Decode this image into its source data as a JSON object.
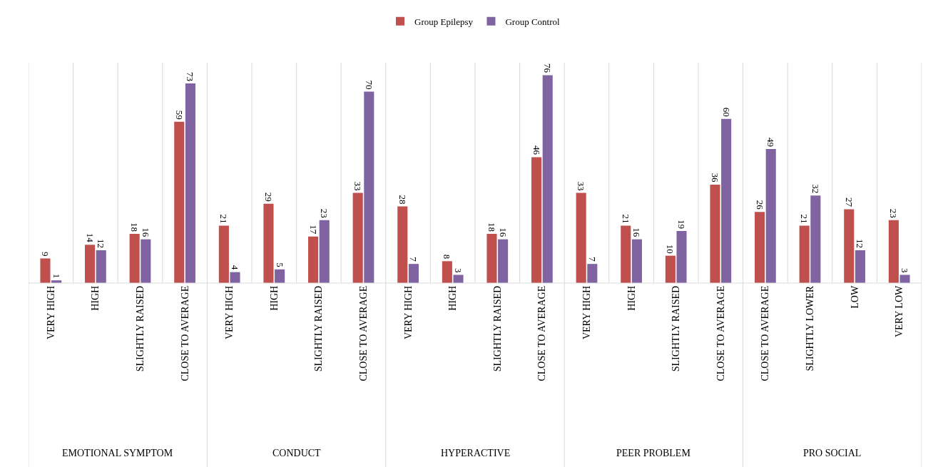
{
  "chart_data": {
    "type": "bar",
    "categories": [
      "VERY HIGH",
      "HIGH",
      "SLIGHTLY RAISED",
      "CLOSE TO AVERAGE",
      "VERY HIGH",
      "HIGH",
      "SLIGHTLY RAISED",
      "CLOSE TO AVERAGE",
      "VERY HIGH",
      "HIGH",
      "SLIGHTLY RAISED",
      "CLOSE TO AVERAGE",
      "VERY HIGH",
      "HIGH",
      "SLIGHTLY RAISED",
      "CLOSE TO AVERAGE",
      "CLOSE TO AVERAGE",
      "SLIGHTLY LOWER",
      "LOW",
      "VERY LOW"
    ],
    "series": [
      {
        "name": "Group Epilepsy",
        "color": "#c0504d",
        "values": [
          9,
          14,
          18,
          59,
          21,
          29,
          17,
          33,
          28,
          8,
          18,
          46,
          33,
          21,
          10,
          36,
          26,
          21,
          27,
          23
        ]
      },
      {
        "name": "Group Control",
        "color": "#8064a2",
        "values": [
          1,
          12,
          16,
          73,
          4,
          5,
          23,
          70,
          7,
          3,
          16,
          76,
          7,
          16,
          19,
          60,
          49,
          32,
          12,
          3
        ]
      }
    ],
    "annotations": [
      "EMOTIONAL SYMPTOM",
      "CONDUCT",
      "HYPERACTIVE",
      "PEER PROBLEM",
      "PRO SOCIAL"
    ],
    "data_labels": true,
    "grid": "x",
    "legend": "top",
    "tick_labels": "x"
  }
}
